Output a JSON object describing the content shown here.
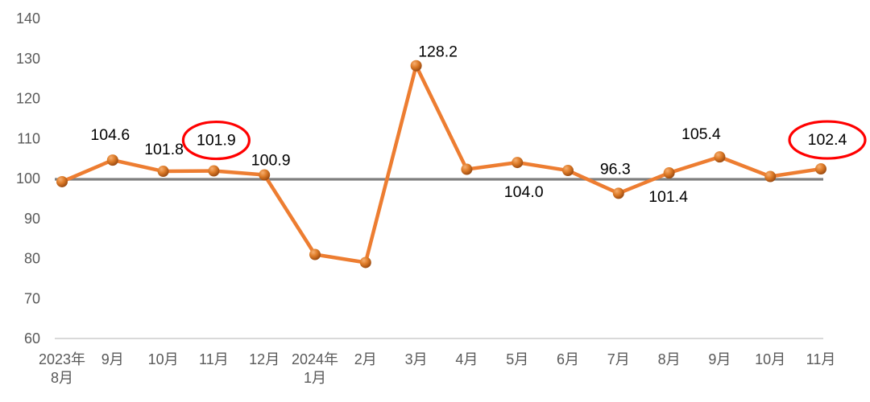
{
  "page": {
    "background_color": "#ffffff"
  },
  "chart_data": {
    "type": "line",
    "title": "",
    "x_categories": [
      [
        "2023年",
        "8月"
      ],
      [
        "9月"
      ],
      [
        "10月"
      ],
      [
        "11月"
      ],
      [
        "12月"
      ],
      [
        "2024年",
        "1月"
      ],
      [
        "2月"
      ],
      [
        "3月"
      ],
      [
        "4月"
      ],
      [
        "5月"
      ],
      [
        "6月"
      ],
      [
        "7月"
      ],
      [
        "8月"
      ],
      [
        "9月"
      ],
      [
        "10月"
      ],
      [
        "11月"
      ]
    ],
    "series": [
      {
        "name": "",
        "values": [
          99.2,
          104.6,
          101.8,
          101.9,
          100.9,
          81.0,
          79.0,
          128.2,
          102.3,
          104.0,
          102.0,
          96.3,
          101.4,
          105.4,
          100.5,
          102.4
        ]
      }
    ],
    "data_labels": [
      "",
      "104.6",
      "101.8",
      "101.9",
      "100.9",
      "",
      "",
      "128.2",
      "",
      "104.0",
      "",
      "96.3",
      "101.4",
      "105.4",
      "",
      "102.4"
    ],
    "circled_label_indices": [
      3,
      15
    ],
    "yticks": [
      140,
      130,
      120,
      110,
      100,
      90,
      80,
      70,
      60
    ],
    "ylim": [
      60,
      140
    ],
    "reference_line_value": 100,
    "grid": "off",
    "legend": "none",
    "colors": {
      "line": "#ED7D31",
      "marker_dark": "#8C3F0B",
      "marker_mid": "#DD7B28",
      "marker_highlight": "#F6AE70",
      "reference_line": "#7F7F7F",
      "axis_line": "#D9D9D9",
      "tick_label": "#595959",
      "data_label": "#000000",
      "highlight_circle": "#FF0000"
    }
  }
}
